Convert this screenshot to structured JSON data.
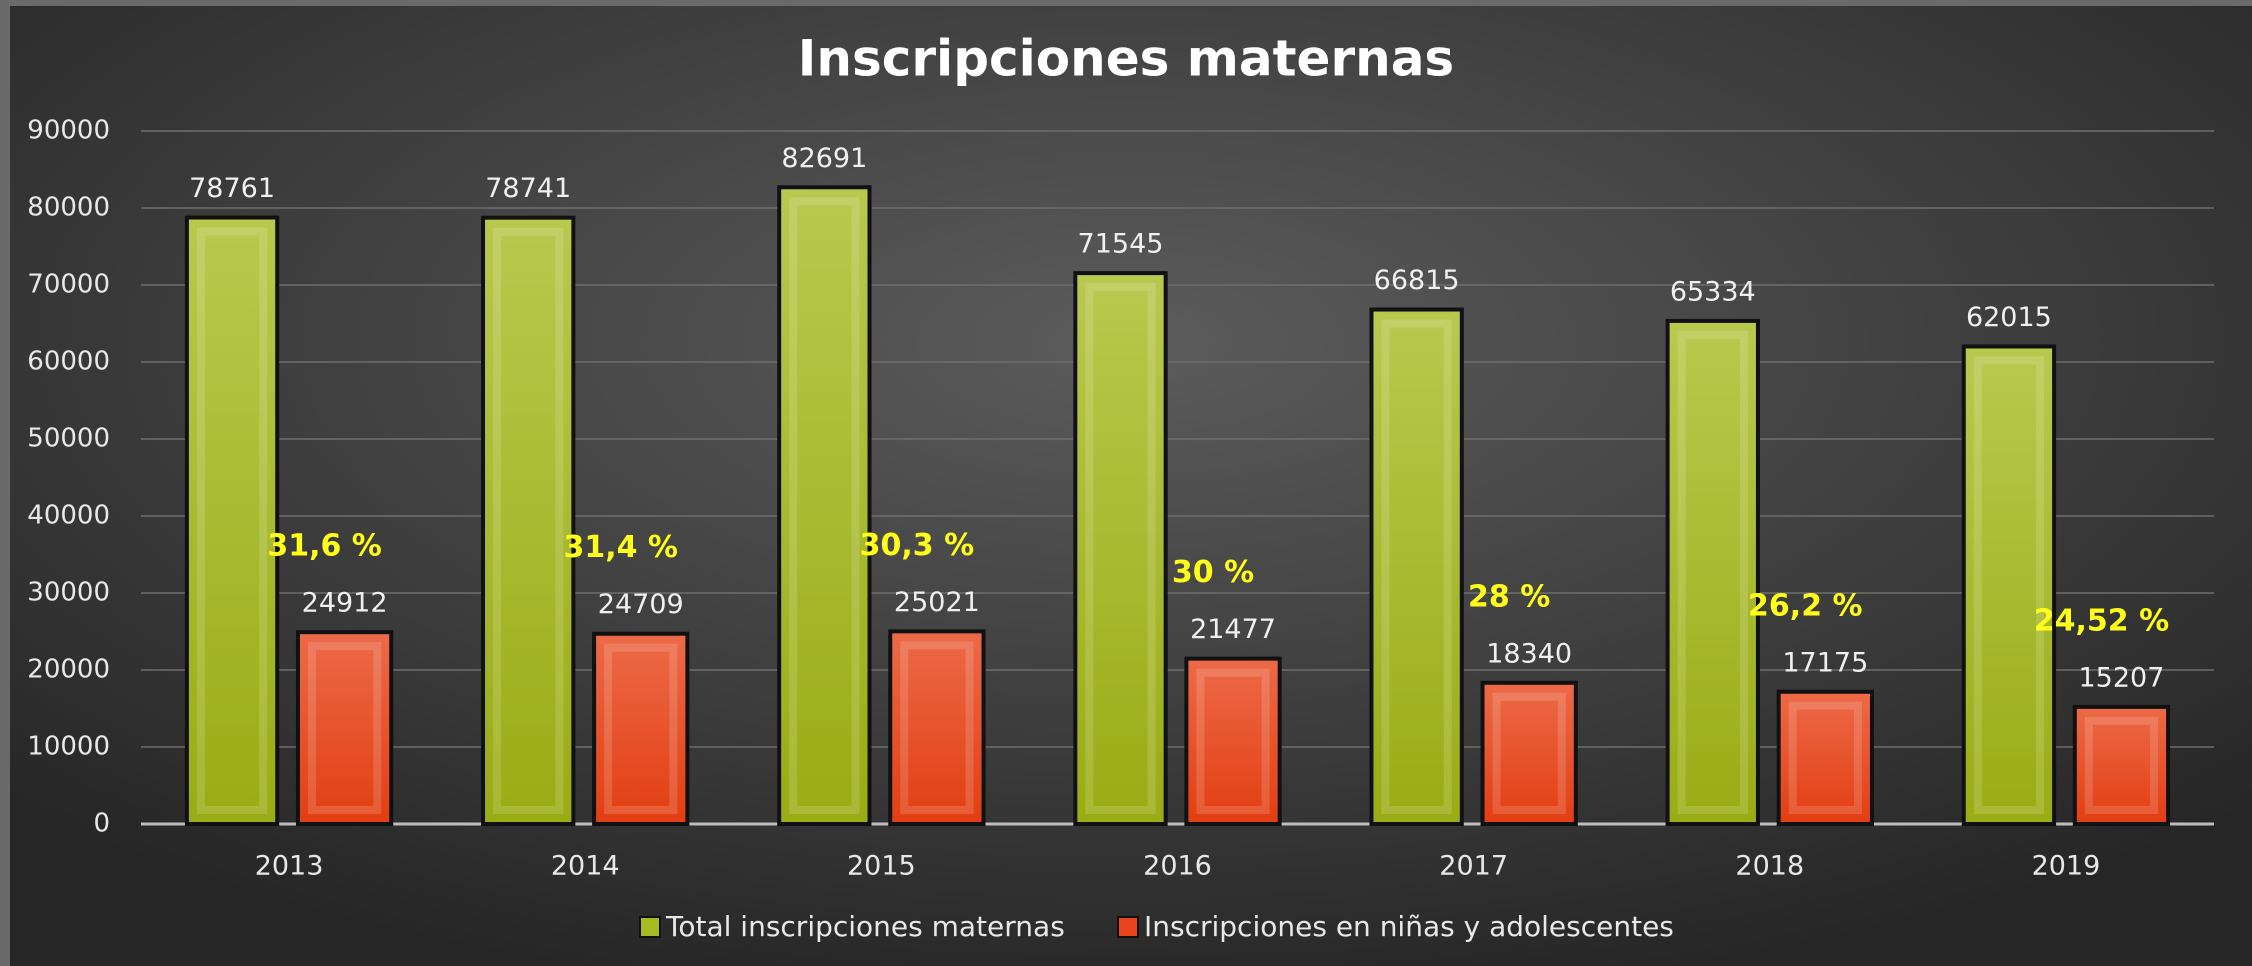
{
  "chart_data": {
    "type": "bar",
    "title": "Inscripciones maternas",
    "categories": [
      "2013",
      "2014",
      "2015",
      "2016",
      "2017",
      "2018",
      "2019"
    ],
    "series": [
      {
        "name": "Total inscripciones maternas",
        "color": "#a6bb1e",
        "values": [
          78761,
          78741,
          82691,
          71545,
          66815,
          65334,
          62015
        ]
      },
      {
        "name": "Inscripciones en niñas y adolescentes",
        "color": "#e8451f",
        "values": [
          24912,
          24709,
          25021,
          21477,
          18340,
          17175,
          15207
        ]
      }
    ],
    "annotations": [
      "31,6 %",
      "31,4 %",
      "30,3 %",
      "30 %",
      "28 %",
      "26,2 %",
      "24,52 %"
    ],
    "ylim": [
      0,
      90000
    ],
    "yticks": [
      0,
      10000,
      20000,
      30000,
      40000,
      50000,
      60000,
      70000,
      80000,
      90000
    ],
    "grid": true,
    "legend": "bottom"
  }
}
